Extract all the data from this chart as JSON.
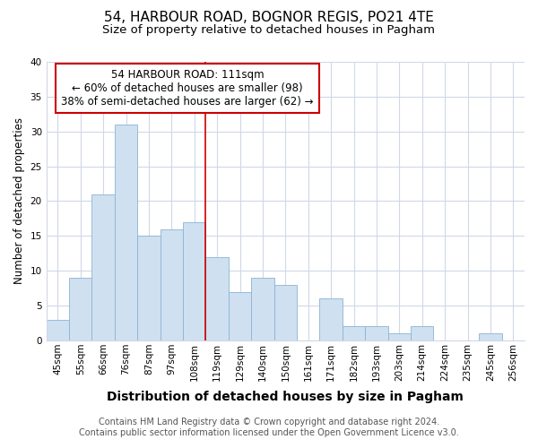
{
  "title1": "54, HARBOUR ROAD, BOGNOR REGIS, PO21 4TE",
  "title2": "Size of property relative to detached houses in Pagham",
  "xlabel": "Distribution of detached houses by size in Pagham",
  "ylabel": "Number of detached properties",
  "categories": [
    "45sqm",
    "55sqm",
    "66sqm",
    "76sqm",
    "87sqm",
    "97sqm",
    "108sqm",
    "119sqm",
    "129sqm",
    "140sqm",
    "150sqm",
    "161sqm",
    "171sqm",
    "182sqm",
    "193sqm",
    "203sqm",
    "214sqm",
    "224sqm",
    "235sqm",
    "245sqm",
    "256sqm"
  ],
  "values": [
    3,
    9,
    21,
    31,
    15,
    16,
    17,
    12,
    7,
    9,
    8,
    0,
    6,
    2,
    2,
    1,
    2,
    0,
    0,
    1,
    0
  ],
  "bar_color": "#cfe0f0",
  "bar_edge_color": "#8ab4d4",
  "property_line_x": 6.5,
  "annotation_line1": "54 HARBOUR ROAD: 111sqm",
  "annotation_line2": "← 60% of detached houses are smaller (98)",
  "annotation_line3": "38% of semi-detached houses are larger (62) →",
  "annotation_box_color": "white",
  "annotation_box_edge": "#cc0000",
  "vline_color": "#cc0000",
  "ylim": [
    0,
    40
  ],
  "yticks": [
    0,
    5,
    10,
    15,
    20,
    25,
    30,
    35,
    40
  ],
  "footnote1": "Contains HM Land Registry data © Crown copyright and database right 2024.",
  "footnote2": "Contains public sector information licensed under the Open Government Licence v3.0.",
  "bg_color": "#ffffff",
  "plot_bg_color": "#ffffff",
  "grid_color": "#d0d8e8",
  "title1_fontsize": 11,
  "title2_fontsize": 9.5,
  "xlabel_fontsize": 10,
  "ylabel_fontsize": 8.5,
  "tick_fontsize": 7.5,
  "annotation_fontsize": 8.5,
  "footnote_fontsize": 7
}
